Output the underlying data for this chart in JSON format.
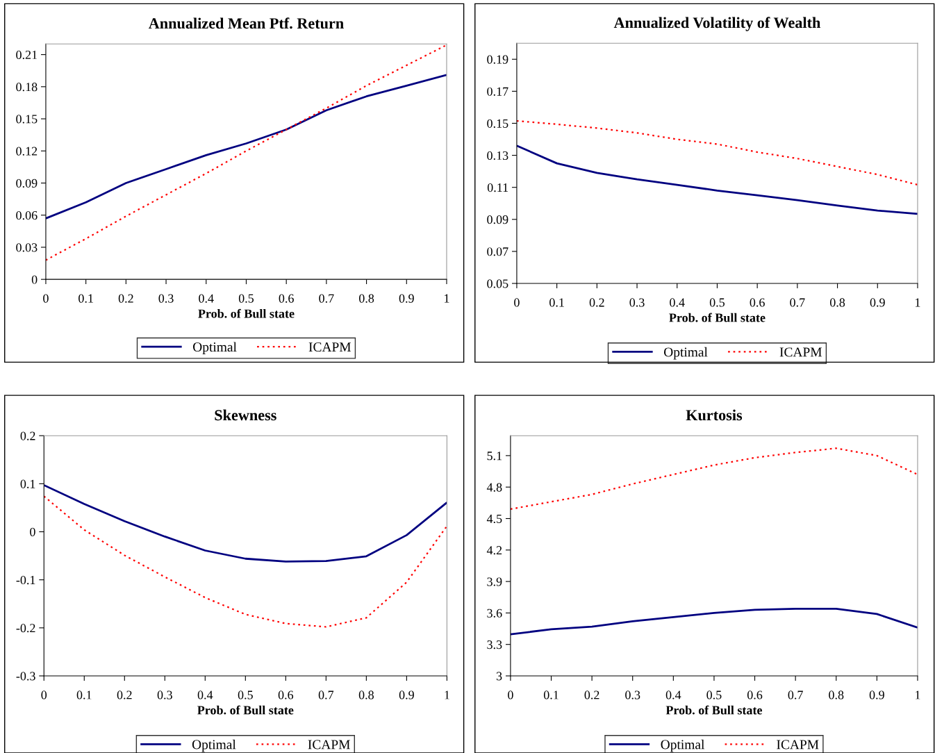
{
  "chart_data": [
    {
      "type": "line",
      "title": "Annualized Mean Ptf. Return",
      "xlabel": "Prob. of Bull state",
      "x": [
        0,
        0.1,
        0.2,
        0.3,
        0.4,
        0.5,
        0.6,
        0.7,
        0.8,
        0.9,
        1
      ],
      "series": [
        {
          "name": "Optimal",
          "color": "#000080",
          "line_style": "solid",
          "values": [
            0.057,
            0.072,
            0.09,
            0.103,
            0.116,
            0.127,
            0.14,
            0.158,
            0.171,
            0.181,
            0.191
          ]
        },
        {
          "name": "ICAPM",
          "color": "#ff0000",
          "line_style": "dotted",
          "values": [
            0.018,
            0.038,
            0.059,
            0.079,
            0.099,
            0.12,
            0.14,
            0.16,
            0.181,
            0.2,
            0.219
          ]
        }
      ],
      "xlim": [
        0,
        1
      ],
      "xticks": [
        0,
        0.1,
        0.2,
        0.3,
        0.4,
        0.5,
        0.6,
        0.7,
        0.8,
        0.9,
        1
      ],
      "ylim": [
        0,
        0.22
      ],
      "yticks": [
        0,
        0.03,
        0.06,
        0.09,
        0.12,
        0.15,
        0.18,
        0.21
      ],
      "grid": false,
      "legend": "bottom",
      "marker": "none"
    },
    {
      "type": "line",
      "title": "Annualized Volatility of Wealth",
      "xlabel": "Prob. of Bull state",
      "x": [
        0,
        0.1,
        0.2,
        0.3,
        0.4,
        0.5,
        0.6,
        0.7,
        0.8,
        0.9,
        1
      ],
      "series": [
        {
          "name": "Optimal",
          "color": "#000080",
          "line_style": "solid",
          "values": [
            0.136,
            0.125,
            0.119,
            0.115,
            0.1116,
            0.108,
            0.105,
            0.102,
            0.0986,
            0.0955,
            0.0934
          ]
        },
        {
          "name": "ICAPM",
          "color": "#ff0000",
          "line_style": "dotted",
          "values": [
            0.1515,
            0.1494,
            0.147,
            0.144,
            0.14,
            0.137,
            0.132,
            0.128,
            0.123,
            0.118,
            0.1116
          ]
        }
      ],
      "xlim": [
        0,
        1
      ],
      "xticks": [
        0,
        0.1,
        0.2,
        0.3,
        0.4,
        0.5,
        0.6,
        0.7,
        0.8,
        0.9,
        1
      ],
      "ylim": [
        0.05,
        0.2
      ],
      "yticks": [
        0.05,
        0.07,
        0.09,
        0.11,
        0.13,
        0.15,
        0.17,
        0.19
      ],
      "grid": false,
      "legend": "bottom",
      "marker": "none"
    },
    {
      "type": "line",
      "title": "Skewness",
      "xlabel": "Prob. of Bull state",
      "x": [
        0,
        0.1,
        0.2,
        0.3,
        0.4,
        0.5,
        0.6,
        0.7,
        0.8,
        0.9,
        1
      ],
      "series": [
        {
          "name": "Optimal",
          "color": "#000080",
          "line_style": "solid",
          "values": [
            0.097,
            0.058,
            0.022,
            -0.01,
            -0.039,
            -0.056,
            -0.062,
            -0.061,
            -0.051,
            -0.007,
            0.061
          ]
        },
        {
          "name": "ICAPM",
          "color": "#ff0000",
          "line_style": "dotted",
          "values": [
            0.074,
            0.004,
            -0.049,
            -0.094,
            -0.137,
            -0.172,
            -0.191,
            -0.198,
            -0.179,
            -0.105,
            0.012
          ]
        }
      ],
      "xlim": [
        0,
        1
      ],
      "xticks": [
        0,
        0.1,
        0.2,
        0.3,
        0.4,
        0.5,
        0.6,
        0.7,
        0.8,
        0.9,
        1
      ],
      "ylim": [
        -0.3,
        0.2
      ],
      "yticks": [
        -0.3,
        -0.2,
        -0.1,
        0,
        0.1,
        0.2
      ],
      "grid": false,
      "legend": "bottom",
      "marker": "none"
    },
    {
      "type": "line",
      "title": "Kurtosis",
      "xlabel": "Prob. of Bull state",
      "x": [
        0,
        0.1,
        0.2,
        0.3,
        0.4,
        0.5,
        0.6,
        0.7,
        0.8,
        0.9,
        1
      ],
      "series": [
        {
          "name": "Optimal",
          "color": "#000080",
          "line_style": "solid",
          "values": [
            3.397,
            3.444,
            3.47,
            3.52,
            3.56,
            3.6,
            3.63,
            3.64,
            3.64,
            3.59,
            3.46
          ]
        },
        {
          "name": "ICAPM",
          "color": "#ff0000",
          "line_style": "dotted",
          "values": [
            4.59,
            4.66,
            4.73,
            4.83,
            4.92,
            5.01,
            5.08,
            5.13,
            5.17,
            5.1,
            4.92
          ]
        }
      ],
      "xlim": [
        0,
        1
      ],
      "xticks": [
        0,
        0.1,
        0.2,
        0.3,
        0.4,
        0.5,
        0.6,
        0.7,
        0.8,
        0.9,
        1
      ],
      "ylim": [
        3,
        5.29
      ],
      "yticks": [
        3,
        3.3,
        3.6,
        3.9,
        4.2,
        4.5,
        4.8,
        5.1
      ],
      "grid": false,
      "legend": "bottom",
      "marker": "none"
    }
  ]
}
